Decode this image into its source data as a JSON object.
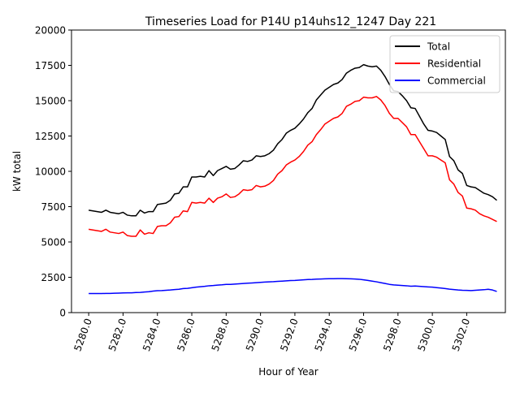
{
  "chart_data": {
    "type": "line",
    "title": "Timeseries Load for P14U p14uhs12_1247  Day 221",
    "xlabel": "Hour of Year",
    "ylabel": "kW total",
    "xlim": [
      5279.0,
      5304.25
    ],
    "ylim": [
      0,
      20000
    ],
    "x_ticks": [
      5280,
      5282,
      5284,
      5286,
      5288,
      5290,
      5292,
      5294,
      5296,
      5298,
      5300,
      5302
    ],
    "x_tick_labels": [
      "5280.0",
      "5282.0",
      "5284.0",
      "5286.0",
      "5288.0",
      "5290.0",
      "5292.0",
      "5294.0",
      "5296.0",
      "5298.0",
      "5300.0",
      "5302.0"
    ],
    "y_ticks": [
      0,
      2500,
      5000,
      7500,
      10000,
      12500,
      15000,
      17500,
      20000
    ],
    "y_tick_labels": [
      "0",
      "2500",
      "5000",
      "7500",
      "10000",
      "12500",
      "15000",
      "17500",
      "20000"
    ],
    "legend_position": "top-right",
    "x_start": 5280.0,
    "x_step": 0.25,
    "series": [
      {
        "name": "Total",
        "color": "#000000",
        "values": [
          7250,
          7200,
          7150,
          7100,
          7250,
          7100,
          7050,
          7000,
          7100,
          6900,
          6850,
          6850,
          7250,
          7050,
          7150,
          7150,
          7650,
          7700,
          7750,
          7950,
          8400,
          8450,
          8900,
          8900,
          9600,
          9600,
          9650,
          9600,
          10050,
          9700,
          10050,
          10200,
          10350,
          10150,
          10200,
          10450,
          10750,
          10700,
          10800,
          11100,
          11050,
          11100,
          11250,
          11500,
          11950,
          12250,
          12700,
          12900,
          13050,
          13350,
          13700,
          14150,
          14450,
          15050,
          15400,
          15750,
          15950,
          16150,
          16250,
          16500,
          16950,
          17150,
          17300,
          17350,
          17550,
          17450,
          17400,
          17450,
          17150,
          16700,
          16150,
          15700,
          15650,
          15350,
          15000,
          14500,
          14450,
          13900,
          13350,
          12900,
          12850,
          12750,
          12500,
          12250,
          11050,
          10750,
          10100,
          9850,
          9000,
          8900,
          8850,
          8650,
          8450,
          8350,
          8200,
          7950
        ]
      },
      {
        "name": "Residential",
        "color": "#ff0000",
        "values": [
          5900,
          5850,
          5800,
          5750,
          5900,
          5700,
          5650,
          5600,
          5700,
          5450,
          5400,
          5400,
          5850,
          5550,
          5650,
          5600,
          6100,
          6150,
          6150,
          6350,
          6750,
          6800,
          7200,
          7150,
          7800,
          7750,
          7800,
          7750,
          8100,
          7800,
          8100,
          8200,
          8400,
          8150,
          8200,
          8400,
          8700,
          8650,
          8700,
          9000,
          8900,
          8950,
          9100,
          9350,
          9800,
          10050,
          10450,
          10650,
          10800,
          11050,
          11400,
          11850,
          12100,
          12600,
          12950,
          13350,
          13550,
          13750,
          13850,
          14100,
          14600,
          14750,
          14950,
          15000,
          15250,
          15200,
          15200,
          15300,
          15050,
          14650,
          14100,
          13750,
          13750,
          13450,
          13150,
          12600,
          12600,
          12100,
          11600,
          11100,
          11100,
          11000,
          10800,
          10600,
          9400,
          9100,
          8500,
          8250,
          7400,
          7350,
          7250,
          7000,
          6850,
          6750,
          6600,
          6450
        ]
      },
      {
        "name": "Commercial",
        "color": "#0000ff",
        "values": [
          1350,
          1350,
          1350,
          1350,
          1360,
          1360,
          1370,
          1380,
          1390,
          1400,
          1400,
          1420,
          1430,
          1460,
          1480,
          1520,
          1550,
          1560,
          1580,
          1600,
          1630,
          1650,
          1700,
          1720,
          1760,
          1800,
          1830,
          1860,
          1900,
          1920,
          1950,
          1970,
          2000,
          2000,
          2020,
          2040,
          2060,
          2080,
          2100,
          2120,
          2140,
          2160,
          2180,
          2190,
          2210,
          2230,
          2250,
          2270,
          2280,
          2300,
          2320,
          2340,
          2350,
          2370,
          2380,
          2390,
          2400,
          2400,
          2410,
          2410,
          2400,
          2390,
          2380,
          2360,
          2320,
          2280,
          2230,
          2180,
          2120,
          2060,
          2000,
          1960,
          1940,
          1920,
          1900,
          1870,
          1880,
          1860,
          1840,
          1820,
          1800,
          1770,
          1740,
          1700,
          1660,
          1630,
          1600,
          1580,
          1570,
          1560,
          1580,
          1600,
          1620,
          1650,
          1600,
          1500
        ]
      }
    ]
  }
}
